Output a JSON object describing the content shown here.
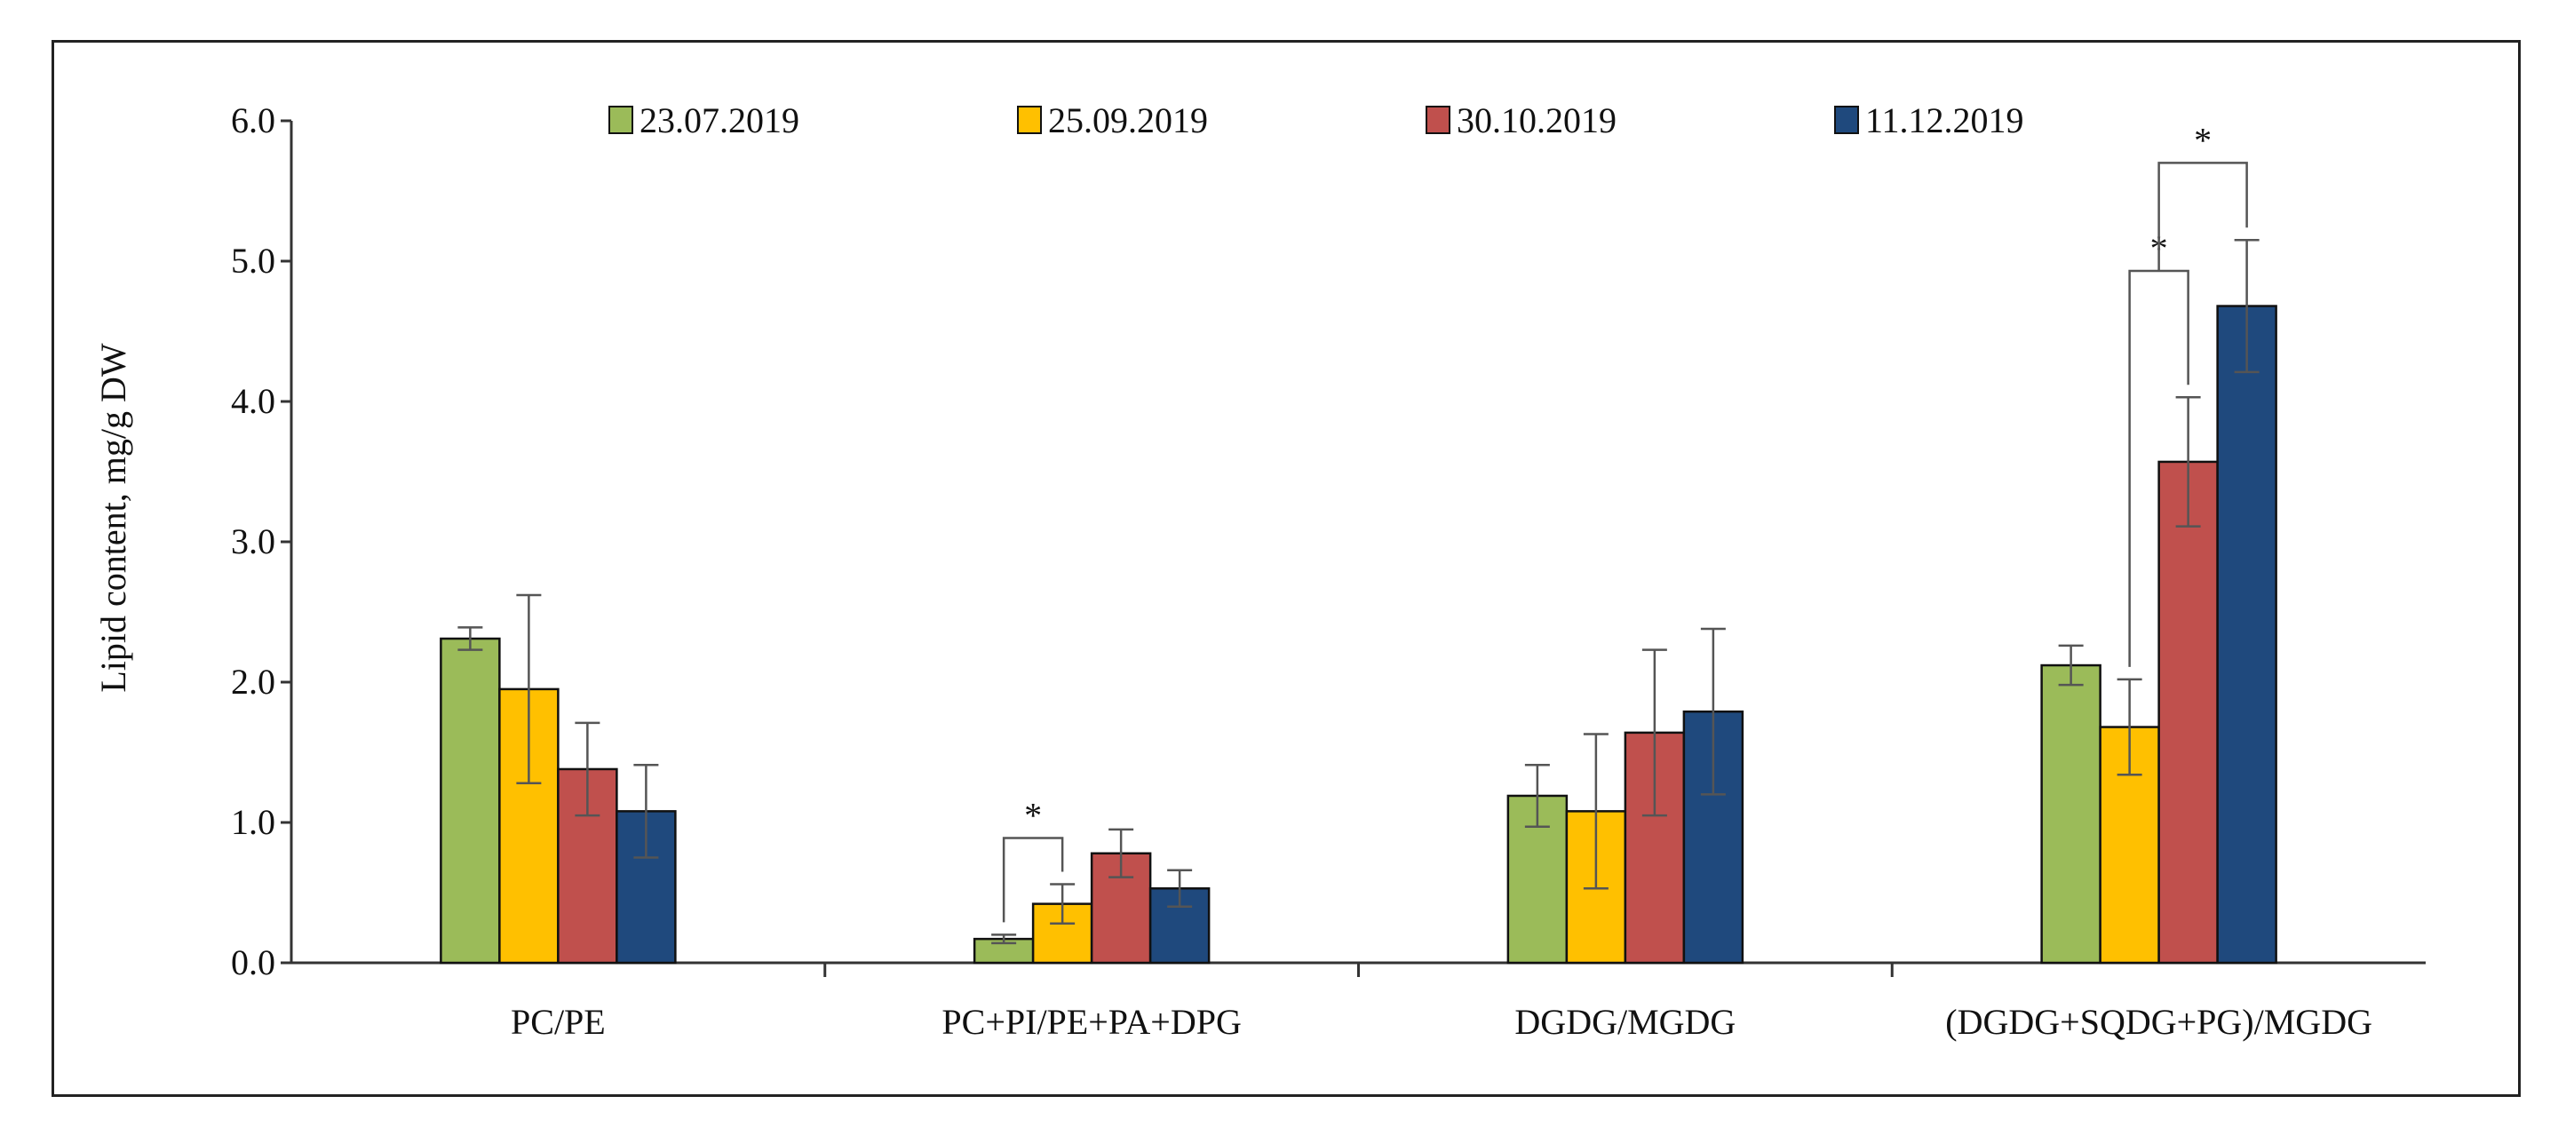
{
  "chart_data": {
    "type": "bar",
    "title": "",
    "xlabel": "",
    "ylabel": "Lipid content, mg/g DW",
    "ylim": [
      0,
      6
    ],
    "yticks": [
      "0.0",
      "1.0",
      "2.0",
      "3.0",
      "4.0",
      "5.0",
      "6.0"
    ],
    "grid": false,
    "legend_position": "top",
    "categories": [
      "PC/PE",
      "PC+PI/PE+PA+DPG",
      "DGDG/MGDG",
      "(DGDG+SQDG+PG)/MGDG"
    ],
    "series": [
      {
        "name": "23.07.2019",
        "color": "#9bbb59",
        "values": [
          2.31,
          0.17,
          1.19,
          2.12
        ],
        "errors": [
          0.08,
          0.03,
          0.22,
          0.14
        ]
      },
      {
        "name": "25.09.2019",
        "color": "#ffc000",
        "values": [
          1.95,
          0.42,
          1.08,
          1.68
        ],
        "errors": [
          0.67,
          0.14,
          0.55,
          0.34
        ]
      },
      {
        "name": "30.10.2019",
        "color": "#c0504d",
        "values": [
          1.38,
          0.78,
          1.64,
          3.57
        ],
        "errors": [
          0.33,
          0.17,
          0.59,
          0.46
        ]
      },
      {
        "name": "11.12.2019",
        "color": "#1f497d",
        "values": [
          1.08,
          0.53,
          1.79,
          4.68
        ],
        "errors": [
          0.33,
          0.13,
          0.59,
          0.47
        ]
      }
    ],
    "significance": [
      {
        "label": "*",
        "category_index": 1,
        "from_series": 0,
        "to_series": 1
      },
      {
        "label": "*",
        "category_index": 3,
        "from_series": 1,
        "to_series": 2
      },
      {
        "label": "*",
        "category_index": 3,
        "from_series": 1,
        "to_series": 3
      }
    ]
  }
}
